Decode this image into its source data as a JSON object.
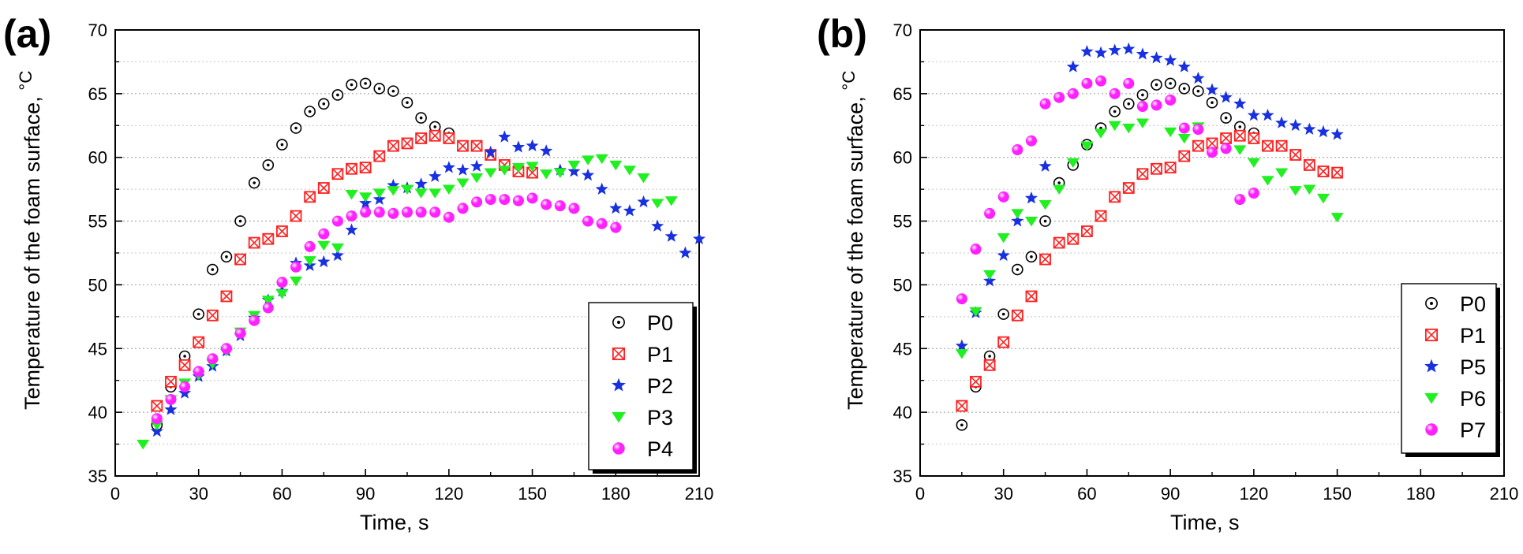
{
  "chart_data": [
    {
      "panel_label": "(a)",
      "type": "scatter",
      "xlabel": "Time, s",
      "ylabel": "Temperature of the foam surface, ",
      "ylabel_unit": "°C",
      "xlim": [
        0,
        210
      ],
      "ylim": [
        35,
        70
      ],
      "xticks": [
        0,
        30,
        60,
        90,
        120,
        150,
        180,
        210
      ],
      "yticks": [
        35,
        40,
        45,
        50,
        55,
        60,
        65,
        70
      ],
      "grid": "horizontal dotted",
      "legend_position": "bottom-right",
      "series": [
        {
          "name": "P0",
          "marker": "dotted-circle",
          "color": "#000000",
          "x": [
            15,
            20,
            25,
            30,
            35,
            40,
            45,
            50,
            55,
            60,
            65,
            70,
            75,
            80,
            85,
            90,
            95,
            100,
            105,
            110,
            115,
            120
          ],
          "y": [
            39.0,
            42.0,
            44.4,
            47.7,
            51.2,
            52.2,
            55.0,
            58.0,
            59.4,
            61.0,
            62.3,
            63.6,
            64.2,
            64.9,
            65.7,
            65.8,
            65.4,
            65.2,
            64.3,
            63.1,
            62.4,
            61.9
          ]
        },
        {
          "name": "P1",
          "marker": "crossed-square",
          "color": "#ff2020",
          "x": [
            15,
            20,
            25,
            30,
            35,
            40,
            45,
            50,
            55,
            60,
            65,
            70,
            75,
            80,
            85,
            90,
            95,
            100,
            105,
            110,
            115,
            120,
            125,
            130,
            135,
            140,
            145,
            150
          ],
          "y": [
            40.5,
            42.4,
            43.7,
            45.5,
            47.6,
            49.1,
            52.0,
            53.3,
            53.6,
            54.2,
            55.4,
            56.9,
            57.6,
            58.7,
            59.1,
            59.2,
            60.1,
            60.9,
            61.1,
            61.5,
            61.7,
            61.5,
            60.9,
            60.9,
            60.2,
            59.4,
            58.9,
            58.8
          ]
        },
        {
          "name": "P2",
          "marker": "star",
          "color": "#1830e0",
          "x": [
            15,
            20,
            25,
            30,
            35,
            40,
            45,
            50,
            55,
            60,
            65,
            70,
            75,
            80,
            85,
            90,
            95,
            100,
            105,
            110,
            115,
            120,
            125,
            130,
            135,
            140,
            145,
            150,
            155,
            160,
            165,
            170,
            175,
            180,
            185,
            190,
            195,
            200,
            205,
            210
          ],
          "y": [
            38.5,
            40.2,
            41.5,
            42.8,
            43.6,
            44.8,
            46.0,
            47.4,
            48.8,
            49.5,
            51.7,
            51.5,
            51.8,
            52.3,
            54.3,
            56.4,
            56.7,
            57.8,
            57.6,
            57.9,
            58.5,
            59.2,
            59.0,
            59.3,
            60.4,
            61.6,
            60.8,
            60.9,
            60.5,
            59.0,
            58.9,
            58.6,
            57.5,
            56.0,
            55.8,
            56.5,
            54.6,
            53.8,
            52.5,
            53.6
          ]
        },
        {
          "name": "P3",
          "marker": "triangle-down",
          "color": "#20f020",
          "x": [
            10,
            15,
            20,
            25,
            30,
            35,
            40,
            45,
            50,
            55,
            60,
            65,
            70,
            75,
            80,
            85,
            90,
            95,
            100,
            105,
            110,
            115,
            120,
            125,
            130,
            135,
            140,
            145,
            150,
            155,
            160,
            165,
            170,
            175,
            180,
            185,
            190,
            195,
            200
          ],
          "y": [
            37.5,
            39.0,
            41.0,
            42.3,
            42.9,
            43.8,
            44.8,
            46.3,
            47.6,
            48.8,
            49.3,
            50.3,
            51.9,
            53.1,
            52.9,
            57.1,
            56.9,
            57.2,
            57.4,
            57.5,
            57.2,
            57.2,
            57.5,
            58.0,
            58.4,
            58.8,
            59.0,
            59.2,
            59.3,
            58.7,
            58.8,
            59.4,
            59.8,
            59.9,
            59.4,
            59.0,
            58.4,
            56.4,
            56.6
          ]
        },
        {
          "name": "P4",
          "marker": "shaded-sphere",
          "color": "#ff20ff",
          "x": [
            15,
            20,
            25,
            30,
            35,
            40,
            45,
            50,
            55,
            60,
            65,
            70,
            75,
            80,
            85,
            90,
            95,
            100,
            105,
            110,
            115,
            120,
            125,
            130,
            135,
            140,
            145,
            150,
            155,
            160,
            165,
            170,
            175,
            180
          ],
          "y": [
            39.5,
            41.0,
            42.0,
            43.2,
            44.2,
            45.0,
            46.2,
            47.2,
            48.2,
            50.2,
            51.4,
            53.0,
            54.0,
            55.0,
            55.4,
            55.7,
            55.7,
            55.6,
            55.7,
            55.7,
            55.7,
            55.3,
            56.0,
            56.5,
            56.7,
            56.7,
            56.6,
            56.8,
            56.3,
            56.2,
            56.0,
            55.0,
            54.8,
            54.5
          ]
        }
      ]
    },
    {
      "panel_label": "(b)",
      "type": "scatter",
      "xlabel": "Time, s",
      "ylabel": "Temperature of the foam surface, ",
      "ylabel_unit": "°C",
      "xlim": [
        0,
        210
      ],
      "ylim": [
        35,
        70
      ],
      "xticks": [
        0,
        30,
        60,
        90,
        120,
        150,
        180,
        210
      ],
      "yticks": [
        35,
        40,
        45,
        50,
        55,
        60,
        65,
        70
      ],
      "grid": "horizontal dotted",
      "legend_position": "right",
      "series": [
        {
          "name": "P0",
          "marker": "dotted-circle",
          "color": "#000000",
          "x": [
            15,
            20,
            25,
            30,
            35,
            40,
            45,
            50,
            55,
            60,
            65,
            70,
            75,
            80,
            85,
            90,
            95,
            100,
            105,
            110,
            115,
            120
          ],
          "y": [
            39.0,
            42.0,
            44.4,
            47.7,
            51.2,
            52.2,
            55.0,
            58.0,
            59.4,
            61.0,
            62.3,
            63.6,
            64.2,
            64.9,
            65.7,
            65.8,
            65.4,
            65.2,
            64.3,
            63.1,
            62.4,
            61.9
          ]
        },
        {
          "name": "P1",
          "marker": "crossed-square",
          "color": "#ff2020",
          "x": [
            15,
            20,
            25,
            30,
            35,
            40,
            45,
            50,
            55,
            60,
            65,
            70,
            75,
            80,
            85,
            90,
            95,
            100,
            105,
            110,
            115,
            120,
            125,
            130,
            135,
            140,
            145,
            150
          ],
          "y": [
            40.5,
            42.4,
            43.7,
            45.5,
            47.6,
            49.1,
            52.0,
            53.3,
            53.6,
            54.2,
            55.4,
            56.9,
            57.6,
            58.7,
            59.1,
            59.2,
            60.1,
            60.9,
            61.1,
            61.5,
            61.7,
            61.5,
            60.9,
            60.9,
            60.2,
            59.4,
            58.9,
            58.8
          ]
        },
        {
          "name": "P5",
          "marker": "star",
          "color": "#1830e0",
          "x": [
            15,
            20,
            25,
            30,
            35,
            40,
            45,
            55,
            60,
            65,
            70,
            75,
            80,
            85,
            90,
            95,
            100,
            105,
            110,
            115,
            120,
            125,
            130,
            135,
            140,
            145,
            150
          ],
          "y": [
            45.2,
            47.8,
            50.3,
            52.3,
            55.0,
            56.8,
            59.3,
            67.1,
            68.3,
            68.2,
            68.4,
            68.5,
            68.1,
            67.8,
            67.6,
            67.1,
            66.2,
            65.3,
            64.7,
            64.2,
            63.3,
            63.3,
            62.7,
            62.5,
            62.2,
            62.0,
            61.8
          ]
        },
        {
          "name": "P6",
          "marker": "triangle-down",
          "color": "#20f020",
          "x": [
            15,
            20,
            25,
            30,
            35,
            40,
            45,
            50,
            55,
            60,
            65,
            70,
            75,
            80,
            90,
            95,
            100,
            115,
            120,
            125,
            130,
            135,
            140,
            145,
            150
          ],
          "y": [
            44.6,
            47.9,
            50.8,
            53.7,
            55.6,
            55.0,
            56.3,
            57.5,
            59.6,
            60.9,
            61.9,
            62.5,
            62.3,
            62.7,
            62.0,
            61.5,
            62.4,
            60.6,
            59.6,
            58.2,
            58.8,
            57.4,
            57.5,
            56.8,
            55.3
          ]
        },
        {
          "name": "P7",
          "marker": "shaded-sphere",
          "color": "#ff20ff",
          "x": [
            15,
            20,
            25,
            30,
            35,
            40,
            45,
            50,
            55,
            60,
            65,
            70,
            75,
            80,
            85,
            90,
            95,
            100,
            105,
            110,
            115,
            120
          ],
          "y": [
            48.9,
            52.8,
            55.6,
            56.9,
            60.6,
            61.3,
            64.2,
            64.7,
            65.0,
            65.8,
            66.0,
            65.0,
            65.8,
            64.0,
            64.1,
            64.5,
            62.3,
            62.2,
            60.4,
            60.7,
            56.7,
            57.2
          ]
        }
      ]
    }
  ]
}
